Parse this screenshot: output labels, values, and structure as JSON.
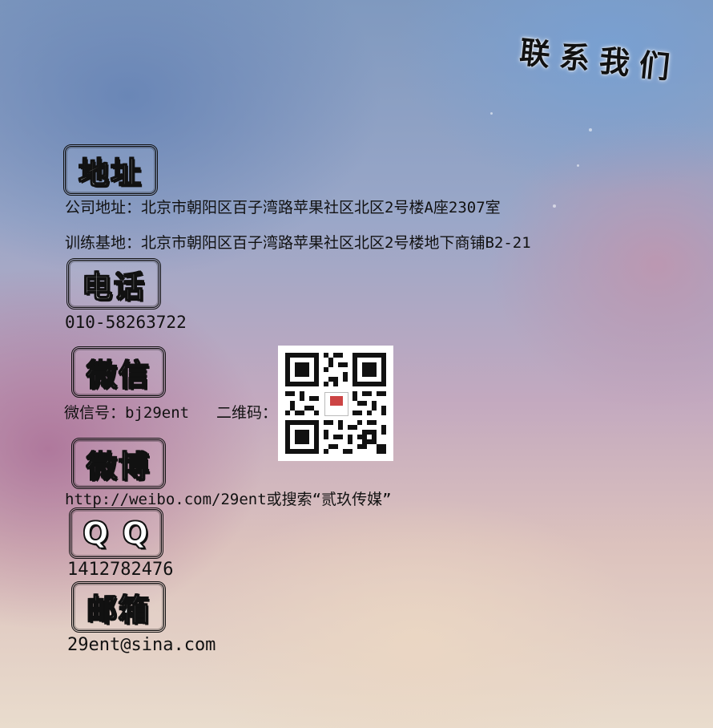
{
  "page_title": "联系我们",
  "sections": {
    "address": {
      "heading": "地址",
      "company_address": "公司地址：北京市朝阳区百子湾路苹果社区北区2号楼A座2307室",
      "training_address": "训练基地：北京市朝阳区百子湾路苹果社区北区2号楼地下商铺B2-21"
    },
    "phone": {
      "heading": "电话",
      "number": "010-58263722"
    },
    "wechat": {
      "heading": "微信",
      "id_line": "微信号：bj29ent",
      "qr_label": "二维码："
    },
    "weibo": {
      "heading": "微博",
      "url_line": "http://weibo.com/29ent或搜索“贰玖传媒”"
    },
    "qq": {
      "heading": "Q Q",
      "number": "1412782476"
    },
    "email": {
      "heading": "邮箱",
      "address": "29ent@sina.com"
    }
  }
}
